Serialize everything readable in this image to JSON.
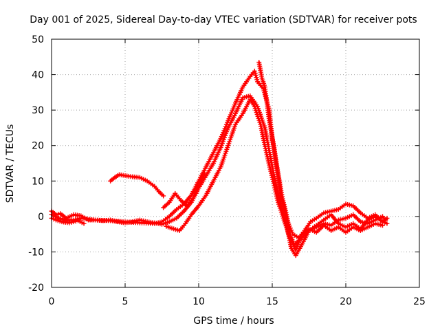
{
  "chart_data": {
    "type": "scatter",
    "title": "Day 001 of 2025, Sidereal Day-to-day VTEC variation (SDTVAR) for receiver pots",
    "xlabel": "GPS time / hours",
    "ylabel": "SDTVAR / TECUs",
    "xlim": [
      0,
      25
    ],
    "ylim": [
      -20,
      50
    ],
    "xticks": [
      0,
      5,
      10,
      15,
      20,
      25
    ],
    "yticks": [
      -20,
      -10,
      0,
      10,
      20,
      30,
      40,
      50
    ],
    "grid": true,
    "marker": "plus",
    "color": "#ff0000",
    "series": [
      {
        "name": "pass-main",
        "points": [
          [
            0.0,
            1.5
          ],
          [
            0.3,
            0.5
          ],
          [
            0.6,
            0.8
          ],
          [
            1.0,
            -0.5
          ],
          [
            1.5,
            0.5
          ],
          [
            2.0,
            0.2
          ],
          [
            2.5,
            -1.0
          ],
          [
            3.0,
            -1.0
          ],
          [
            3.5,
            -1.2
          ],
          [
            4.0,
            -1.0
          ],
          [
            4.5,
            -1.5
          ],
          [
            5.0,
            -1.8
          ],
          [
            5.5,
            -1.5
          ],
          [
            6.0,
            -1.0
          ],
          [
            6.5,
            -1.5
          ],
          [
            7.0,
            -1.8
          ],
          [
            7.5,
            -2.2
          ],
          [
            8.0,
            -1.5
          ],
          [
            8.5,
            -0.5
          ],
          [
            9.0,
            1.5
          ],
          [
            9.5,
            4.0
          ],
          [
            10.0,
            8.0
          ],
          [
            10.5,
            11.5
          ],
          [
            11.0,
            15.0
          ],
          [
            11.5,
            19.5
          ],
          [
            12.0,
            25.0
          ],
          [
            12.5,
            29.0
          ],
          [
            13.0,
            33.5
          ],
          [
            13.5,
            34.0
          ],
          [
            14.0,
            31.0
          ],
          [
            14.5,
            25.0
          ],
          [
            15.0,
            14.0
          ],
          [
            15.3,
            8.0
          ],
          [
            15.6,
            3.0
          ],
          [
            16.0,
            -3.0
          ],
          [
            16.3,
            -9.0
          ],
          [
            16.6,
            -11.0
          ],
          [
            17.0,
            -8.0
          ],
          [
            17.5,
            -4.0
          ],
          [
            18.0,
            -2.5
          ],
          [
            18.5,
            -1.0
          ],
          [
            19.0,
            0.5
          ],
          [
            19.5,
            -2.0
          ],
          [
            20.0,
            -3.0
          ],
          [
            20.5,
            -2.0
          ],
          [
            21.0,
            -3.5
          ],
          [
            21.5,
            -1.0
          ],
          [
            22.0,
            0.0
          ],
          [
            22.5,
            -1.5
          ],
          [
            22.8,
            -2.0
          ]
        ]
      },
      {
        "name": "pass-upper",
        "points": [
          [
            0.0,
            0.5
          ],
          [
            0.5,
            -0.5
          ],
          [
            1.0,
            -1.0
          ],
          [
            1.5,
            -1.0
          ],
          [
            2.0,
            -0.5
          ],
          [
            3.0,
            -1.0
          ],
          [
            4.0,
            -1.2
          ],
          [
            5.0,
            -1.5
          ],
          [
            6.0,
            -1.8
          ],
          [
            7.0,
            -2.0
          ],
          [
            7.5,
            -1.5
          ],
          [
            8.0,
            0.0
          ],
          [
            8.5,
            2.0
          ],
          [
            9.0,
            3.5
          ],
          [
            9.5,
            6.0
          ],
          [
            10.0,
            10.0
          ],
          [
            10.5,
            14.0
          ],
          [
            11.0,
            18.0
          ],
          [
            11.5,
            22.0
          ],
          [
            12.0,
            27.0
          ],
          [
            12.5,
            32.0
          ],
          [
            13.0,
            36.5
          ],
          [
            13.5,
            39.5
          ],
          [
            13.8,
            41.0
          ],
          [
            14.0,
            38.0
          ],
          [
            14.4,
            36.0
          ],
          [
            14.8,
            30.0
          ],
          [
            15.0,
            22.0
          ],
          [
            15.3,
            14.0
          ],
          [
            15.6,
            6.0
          ],
          [
            16.0,
            -1.0
          ],
          [
            16.4,
            -5.0
          ],
          [
            16.8,
            -6.0
          ],
          [
            17.2,
            -4.0
          ],
          [
            17.6,
            -1.5
          ],
          [
            18.0,
            -0.5
          ],
          [
            18.5,
            1.0
          ],
          [
            19.0,
            1.5
          ],
          [
            19.5,
            2.0
          ],
          [
            20.0,
            3.5
          ],
          [
            20.5,
            3.0
          ],
          [
            21.0,
            1.0
          ],
          [
            21.5,
            -0.5
          ],
          [
            22.0,
            0.5
          ],
          [
            22.5,
            -1.5
          ],
          [
            22.8,
            -0.5
          ]
        ]
      },
      {
        "name": "pass-peak",
        "points": [
          [
            14.1,
            43.5
          ],
          [
            14.3,
            39.0
          ],
          [
            14.5,
            36.5
          ],
          [
            14.8,
            27.0
          ],
          [
            15.1,
            20.0
          ],
          [
            15.4,
            12.0
          ],
          [
            15.7,
            5.0
          ],
          [
            16.0,
            0.0
          ],
          [
            16.2,
            -5.0
          ],
          [
            16.5,
            -8.0
          ],
          [
            17.0,
            -6.0
          ],
          [
            17.5,
            -4.0
          ],
          [
            18.0,
            -3.0
          ],
          [
            18.5,
            -2.0
          ],
          [
            19.0,
            -2.5
          ],
          [
            19.5,
            -1.0
          ],
          [
            20.0,
            -0.5
          ],
          [
            20.5,
            0.5
          ],
          [
            21.0,
            -1.5
          ],
          [
            21.5,
            -2.0
          ],
          [
            22.0,
            -1.0
          ],
          [
            22.5,
            0.0
          ],
          [
            22.7,
            -1.0
          ]
        ]
      },
      {
        "name": "pass-lower",
        "points": [
          [
            7.8,
            -2.8
          ],
          [
            8.3,
            -3.5
          ],
          [
            8.7,
            -4.0
          ],
          [
            9.1,
            -2.0
          ],
          [
            9.5,
            0.5
          ],
          [
            10.0,
            3.0
          ],
          [
            10.5,
            6.0
          ],
          [
            11.0,
            10.0
          ],
          [
            11.5,
            14.0
          ],
          [
            12.0,
            20.0
          ],
          [
            12.5,
            26.0
          ],
          [
            13.0,
            29.0
          ],
          [
            13.5,
            33.0
          ],
          [
            13.8,
            31.0
          ],
          [
            14.2,
            26.0
          ],
          [
            14.6,
            18.0
          ],
          [
            15.0,
            11.0
          ],
          [
            15.4,
            4.0
          ],
          [
            15.8,
            -1.0
          ],
          [
            16.2,
            -6.0
          ],
          [
            16.6,
            -9.5
          ],
          [
            17.0,
            -5.0
          ],
          [
            17.5,
            -3.5
          ],
          [
            18.0,
            -4.5
          ],
          [
            18.5,
            -2.5
          ],
          [
            19.0,
            -4.0
          ],
          [
            19.5,
            -3.0
          ],
          [
            20.0,
            -4.5
          ],
          [
            20.5,
            -3.0
          ],
          [
            21.0,
            -4.0
          ],
          [
            21.5,
            -3.0
          ],
          [
            22.0,
            -2.0
          ],
          [
            22.5,
            -2.5
          ]
        ]
      },
      {
        "name": "pass-early-hump",
        "points": [
          [
            4.0,
            10.0
          ],
          [
            4.3,
            11.0
          ],
          [
            4.6,
            11.8
          ],
          [
            5.0,
            11.5
          ],
          [
            5.5,
            11.2
          ],
          [
            6.0,
            11.0
          ],
          [
            6.5,
            10.0
          ],
          [
            7.0,
            8.5
          ],
          [
            7.3,
            7.0
          ],
          [
            7.6,
            5.8
          ]
        ]
      },
      {
        "name": "pass-lowband",
        "points": [
          [
            0.0,
            -0.5
          ],
          [
            0.3,
            -1.0
          ],
          [
            0.7,
            -1.5
          ],
          [
            1.2,
            -1.8
          ],
          [
            1.8,
            -1.2
          ],
          [
            2.2,
            -2.0
          ]
        ]
      },
      {
        "name": "pass-mid-bump",
        "points": [
          [
            7.6,
            2.5
          ],
          [
            8.0,
            4.0
          ],
          [
            8.4,
            6.5
          ],
          [
            8.8,
            4.5
          ],
          [
            9.2,
            3.0
          ],
          [
            9.6,
            5.0
          ],
          [
            10.0,
            9.0
          ],
          [
            10.4,
            12.0
          ]
        ]
      }
    ]
  }
}
